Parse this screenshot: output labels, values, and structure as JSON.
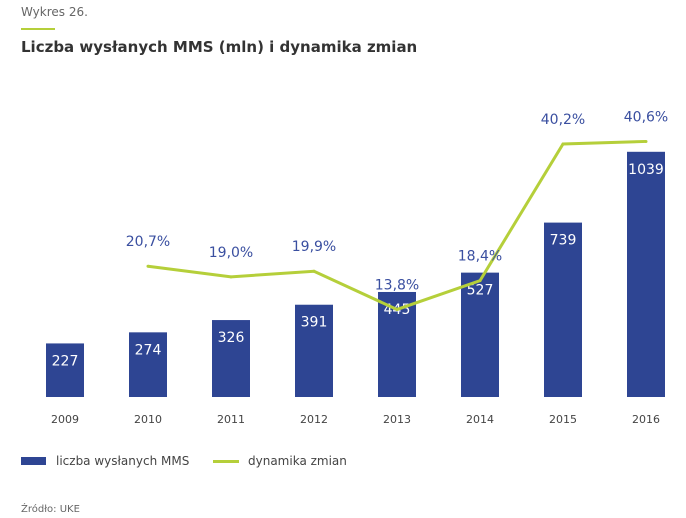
{
  "header": {
    "kicker": "Wykres 26.",
    "title": "Liczba wysłanych MMS (mln) i dynamika zmian"
  },
  "chart_data": {
    "type": "bar+line",
    "title": "Liczba wysłanych MMS (mln) i dynamika zmian",
    "categories": [
      "2009",
      "2010",
      "2011",
      "2012",
      "2013",
      "2014",
      "2015",
      "2016"
    ],
    "series": [
      {
        "name": "liczba wysłanych MMS",
        "type": "bar",
        "values": [
          227,
          274,
          326,
          391,
          445,
          527,
          739,
          1039
        ],
        "labels": [
          "227",
          "274",
          "326",
          "391",
          "445",
          "527",
          "739",
          "1039"
        ],
        "color": "#2e4593"
      },
      {
        "name": "dynamika zmian",
        "type": "line",
        "values": [
          null,
          20.7,
          19.0,
          19.9,
          13.8,
          18.4,
          40.2,
          40.6
        ],
        "labels": [
          "",
          "20,7%",
          "19,0%",
          "19,9%",
          "13,8%",
          "18,4%",
          "40,2%",
          "40,6%"
        ],
        "color": "#b5cf3a"
      }
    ],
    "legend": "bottom-left",
    "grid": false
  },
  "legend": {
    "bar_label": "liczba wysłanych MMS",
    "line_label": "dynamika zmian"
  },
  "source": "Źródło: UKE"
}
